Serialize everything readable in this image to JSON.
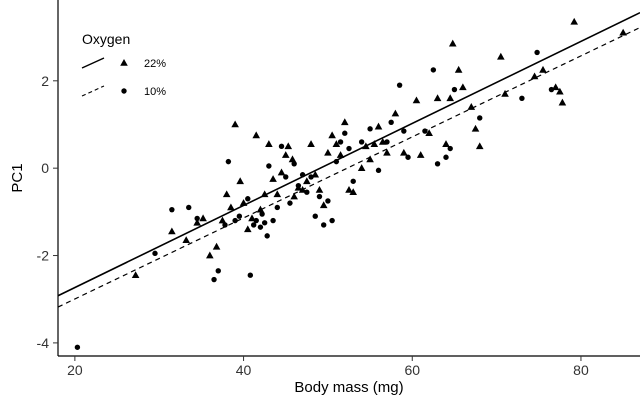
{
  "chart_data": {
    "type": "scatter",
    "xlabel": "Body mass (mg)",
    "ylabel": "PC1",
    "xlim": [
      18,
      87
    ],
    "ylim": [
      -4.3,
      3.85
    ],
    "x_ticks": [
      20,
      40,
      60,
      80
    ],
    "y_ticks": [
      -4,
      -2,
      0,
      2
    ],
    "grid": false,
    "legend": {
      "title": "Oxygen",
      "placement": "top-left",
      "entries": [
        {
          "label": "22%",
          "marker": "triangle",
          "line": "solid"
        },
        {
          "label": "10%",
          "marker": "circle",
          "line": "dashed"
        }
      ]
    },
    "series": [
      {
        "name": "22%",
        "marker": "triangle",
        "line_style": "solid",
        "fit": {
          "x": [
            18,
            87
          ],
          "y": [
            -2.92,
            3.56
          ]
        },
        "points": [
          [
            27.2,
            -2.45
          ],
          [
            31.5,
            -1.45
          ],
          [
            33.2,
            -1.65
          ],
          [
            34.5,
            -1.25
          ],
          [
            35.2,
            -1.15
          ],
          [
            36.0,
            -2.0
          ],
          [
            36.8,
            -1.8
          ],
          [
            37.5,
            -1.2
          ],
          [
            38.0,
            -0.6
          ],
          [
            38.5,
            -0.9
          ],
          [
            39.0,
            1.0
          ],
          [
            39.6,
            -0.3
          ],
          [
            40.0,
            -0.8
          ],
          [
            40.5,
            -1.4
          ],
          [
            41.0,
            -1.15
          ],
          [
            41.5,
            0.75
          ],
          [
            42.0,
            -0.95
          ],
          [
            42.5,
            -0.6
          ],
          [
            43.0,
            0.55
          ],
          [
            43.5,
            -0.25
          ],
          [
            44.0,
            -0.6
          ],
          [
            44.5,
            -0.1
          ],
          [
            45.0,
            0.3
          ],
          [
            45.3,
            0.5
          ],
          [
            45.8,
            0.2
          ],
          [
            46.0,
            -0.65
          ],
          [
            46.5,
            -0.45
          ],
          [
            47.0,
            -0.5
          ],
          [
            47.5,
            -0.3
          ],
          [
            48.0,
            0.55
          ],
          [
            48.5,
            -0.15
          ],
          [
            49.0,
            -0.5
          ],
          [
            49.5,
            -0.85
          ],
          [
            50.0,
            0.35
          ],
          [
            50.5,
            0.75
          ],
          [
            51.0,
            0.55
          ],
          [
            51.5,
            0.3
          ],
          [
            52.0,
            1.05
          ],
          [
            52.5,
            -0.5
          ],
          [
            53.0,
            -0.55
          ],
          [
            54.0,
            0.0
          ],
          [
            54.5,
            0.5
          ],
          [
            55.0,
            0.2
          ],
          [
            55.5,
            0.55
          ],
          [
            56.0,
            0.95
          ],
          [
            56.5,
            0.6
          ],
          [
            57.0,
            0.35
          ],
          [
            58.0,
            1.25
          ],
          [
            59.0,
            0.35
          ],
          [
            60.5,
            1.55
          ],
          [
            61.0,
            0.3
          ],
          [
            62.0,
            0.8
          ],
          [
            63.0,
            1.6
          ],
          [
            64.0,
            0.55
          ],
          [
            64.5,
            1.6
          ],
          [
            64.8,
            2.85
          ],
          [
            65.5,
            2.25
          ],
          [
            66.0,
            1.85
          ],
          [
            67.0,
            1.4
          ],
          [
            67.5,
            0.9
          ],
          [
            68.0,
            0.5
          ],
          [
            70.5,
            2.55
          ],
          [
            71.0,
            1.7
          ],
          [
            74.5,
            2.1
          ],
          [
            75.5,
            2.25
          ],
          [
            77.0,
            1.85
          ],
          [
            77.5,
            1.75
          ],
          [
            77.8,
            1.5
          ],
          [
            79.2,
            3.35
          ],
          [
            85.0,
            3.1
          ]
        ]
      },
      {
        "name": "10%",
        "marker": "circle",
        "line_style": "dashed",
        "fit": {
          "x": [
            18,
            87
          ],
          "y": [
            -3.18,
            3.22
          ]
        },
        "points": [
          [
            20.3,
            -4.1
          ],
          [
            29.5,
            -1.95
          ],
          [
            31.5,
            -0.95
          ],
          [
            33.5,
            -0.9
          ],
          [
            34.5,
            -1.15
          ],
          [
            36.5,
            -2.55
          ],
          [
            37.0,
            -2.35
          ],
          [
            37.8,
            -1.3
          ],
          [
            38.2,
            0.15
          ],
          [
            39.0,
            -1.2
          ],
          [
            39.5,
            -1.1
          ],
          [
            40.5,
            -0.7
          ],
          [
            40.8,
            -2.45
          ],
          [
            41.2,
            -1.3
          ],
          [
            41.5,
            -1.2
          ],
          [
            42.0,
            -1.35
          ],
          [
            42.2,
            -1.05
          ],
          [
            42.5,
            -1.25
          ],
          [
            42.8,
            -1.55
          ],
          [
            43.0,
            0.05
          ],
          [
            43.5,
            -1.2
          ],
          [
            44.0,
            -0.9
          ],
          [
            44.5,
            0.5
          ],
          [
            45.0,
            -0.2
          ],
          [
            45.5,
            -0.8
          ],
          [
            46.0,
            0.1
          ],
          [
            46.5,
            -0.4
          ],
          [
            47.0,
            -0.15
          ],
          [
            47.5,
            -0.55
          ],
          [
            48.0,
            -0.2
          ],
          [
            48.5,
            -1.1
          ],
          [
            49.0,
            -0.65
          ],
          [
            49.5,
            -1.3
          ],
          [
            50.0,
            -0.75
          ],
          [
            50.5,
            -1.2
          ],
          [
            51.0,
            0.15
          ],
          [
            51.5,
            0.6
          ],
          [
            52.0,
            0.8
          ],
          [
            52.5,
            0.45
          ],
          [
            53.0,
            -0.3
          ],
          [
            54.0,
            0.6
          ],
          [
            55.0,
            0.9
          ],
          [
            56.0,
            -0.05
          ],
          [
            57.0,
            0.6
          ],
          [
            57.5,
            1.05
          ],
          [
            58.5,
            1.9
          ],
          [
            59.0,
            0.85
          ],
          [
            59.5,
            0.25
          ],
          [
            61.5,
            0.85
          ],
          [
            62.5,
            2.25
          ],
          [
            63.0,
            0.1
          ],
          [
            64.0,
            0.25
          ],
          [
            64.5,
            0.45
          ],
          [
            65.0,
            1.8
          ],
          [
            68.0,
            1.15
          ],
          [
            73.0,
            1.6
          ],
          [
            74.8,
            2.65
          ],
          [
            76.5,
            1.8
          ]
        ]
      }
    ]
  }
}
